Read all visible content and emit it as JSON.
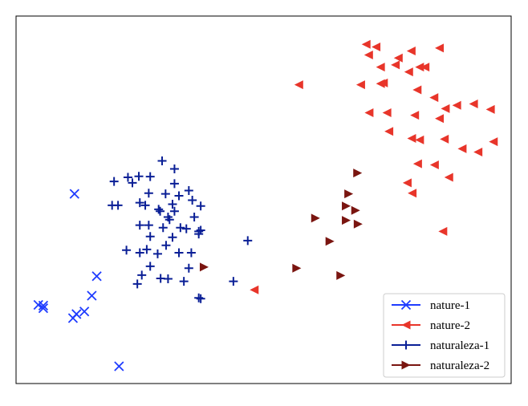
{
  "chart_data": {
    "type": "scatter",
    "title": "",
    "xlabel": "",
    "ylabel": "",
    "xlim": [
      0,
      100
    ],
    "ylim": [
      0,
      100
    ],
    "grid": false,
    "axes_ticks": false,
    "legend_placement": "bottom-right",
    "series": [
      {
        "name": "nature-1",
        "marker": "x",
        "color": "#1f3cff",
        "points": [
          [
            11.8,
            51.6
          ],
          [
            16.3,
            29.2
          ],
          [
            15.3,
            23.9
          ],
          [
            4.5,
            21.4
          ],
          [
            5.5,
            21.2
          ],
          [
            5.5,
            20.5
          ],
          [
            13.8,
            19.6
          ],
          [
            12.2,
            18.9
          ],
          [
            11.5,
            17.8
          ],
          [
            20.8,
            4.7
          ]
        ]
      },
      {
        "name": "nature-2",
        "marker": "triangle-left",
        "color": "#e8352a",
        "points": [
          [
            70.7,
            92.3
          ],
          [
            72.7,
            91.6
          ],
          [
            85.5,
            91.3
          ],
          [
            79.8,
            90.5
          ],
          [
            71.2,
            89.4
          ],
          [
            77.2,
            88.6
          ],
          [
            76.6,
            86.7
          ],
          [
            73.6,
            86.1
          ],
          [
            81.5,
            86.1
          ],
          [
            82.6,
            86.1
          ],
          [
            79.3,
            84.8
          ],
          [
            57.1,
            81.3
          ],
          [
            69.6,
            81.3
          ],
          [
            73.6,
            81.6
          ],
          [
            74.2,
            81.8
          ],
          [
            81.0,
            79.9
          ],
          [
            84.4,
            77.8
          ],
          [
            92.4,
            76.1
          ],
          [
            89.0,
            75.7
          ],
          [
            86.7,
            74.8
          ],
          [
            95.8,
            74.6
          ],
          [
            71.3,
            73.7
          ],
          [
            74.9,
            73.7
          ],
          [
            80.5,
            73.0
          ],
          [
            85.5,
            72.1
          ],
          [
            75.3,
            68.6
          ],
          [
            79.9,
            66.7
          ],
          [
            86.5,
            66.5
          ],
          [
            81.5,
            66.3
          ],
          [
            96.4,
            65.8
          ],
          [
            90.1,
            63.9
          ],
          [
            93.3,
            63.0
          ],
          [
            81.1,
            59.8
          ],
          [
            84.5,
            59.5
          ],
          [
            87.4,
            56.1
          ],
          [
            79.0,
            54.6
          ],
          [
            80.0,
            51.8
          ],
          [
            86.2,
            41.4
          ],
          [
            48.1,
            25.5
          ]
        ]
      },
      {
        "name": "naturaleza-1",
        "marker": "plus",
        "color": "#0a1f96",
        "points": [
          [
            29.5,
            60.6
          ],
          [
            32.0,
            58.4
          ],
          [
            22.6,
            56.1
          ],
          [
            24.8,
            56.4
          ],
          [
            19.8,
            55.0
          ],
          [
            27.1,
            56.3
          ],
          [
            23.5,
            54.6
          ],
          [
            32.0,
            54.4
          ],
          [
            26.8,
            51.8
          ],
          [
            30.2,
            51.6
          ],
          [
            34.9,
            52.5
          ],
          [
            32.9,
            51.1
          ],
          [
            35.6,
            49.9
          ],
          [
            19.4,
            48.5
          ],
          [
            20.6,
            48.5
          ],
          [
            25.0,
            49.2
          ],
          [
            26.1,
            48.5
          ],
          [
            31.6,
            48.8
          ],
          [
            29.1,
            46.9
          ],
          [
            30.7,
            45.3
          ],
          [
            28.8,
            47.4
          ],
          [
            32.0,
            46.9
          ],
          [
            37.3,
            48.3
          ],
          [
            31.0,
            44.6
          ],
          [
            36.0,
            45.3
          ],
          [
            25.0,
            43.1
          ],
          [
            26.8,
            43.1
          ],
          [
            29.7,
            42.4
          ],
          [
            33.2,
            42.4
          ],
          [
            34.4,
            42.1
          ],
          [
            36.9,
            41.4
          ],
          [
            37.3,
            41.7
          ],
          [
            36.9,
            40.7
          ],
          [
            31.6,
            39.8
          ],
          [
            27.1,
            40.0
          ],
          [
            30.3,
            37.6
          ],
          [
            26.4,
            36.5
          ],
          [
            22.3,
            36.3
          ],
          [
            25.0,
            35.6
          ],
          [
            28.6,
            35.3
          ],
          [
            32.9,
            35.6
          ],
          [
            35.4,
            35.6
          ],
          [
            46.8,
            38.9
          ],
          [
            27.1,
            31.9
          ],
          [
            34.9,
            31.4
          ],
          [
            25.4,
            29.5
          ],
          [
            29.2,
            28.6
          ],
          [
            30.7,
            28.5
          ],
          [
            33.9,
            27.8
          ],
          [
            24.5,
            27.1
          ],
          [
            43.9,
            27.8
          ],
          [
            37.3,
            23.1
          ],
          [
            36.9,
            23.3
          ]
        ]
      },
      {
        "name": "naturaleza-2",
        "marker": "triangle-right",
        "color": "#7a1510",
        "points": [
          [
            69.0,
            57.3
          ],
          [
            67.2,
            51.6
          ],
          [
            66.7,
            48.3
          ],
          [
            68.6,
            47.1
          ],
          [
            60.5,
            45.0
          ],
          [
            66.7,
            44.4
          ],
          [
            69.1,
            43.4
          ],
          [
            63.4,
            38.7
          ],
          [
            38.0,
            31.7
          ],
          [
            56.7,
            31.4
          ],
          [
            65.6,
            29.4
          ]
        ]
      }
    ]
  }
}
